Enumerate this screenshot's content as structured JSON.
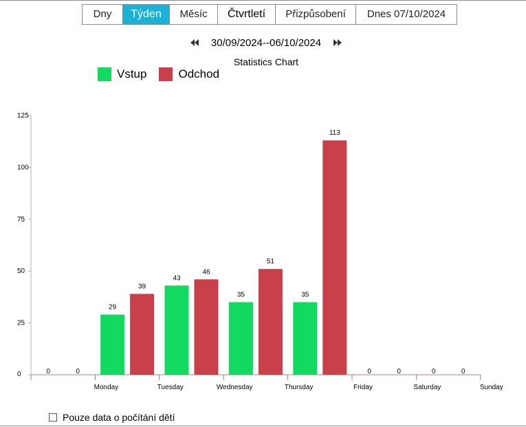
{
  "tabs": [
    {
      "label": "Dny",
      "active": false
    },
    {
      "label": "Týden",
      "active": true
    },
    {
      "label": "Měsíc",
      "active": false
    },
    {
      "label": "Čtvrtletí",
      "active": false
    },
    {
      "label": "Přizpůsobení",
      "active": false
    },
    {
      "label": "Dnes 07/10/2024",
      "active": false
    }
  ],
  "date_range": "30/09/2024--06/10/2024",
  "colors": {
    "accent": "#1ab2d6",
    "entry": "#12d95f",
    "exit": "#c8404a",
    "axis": "#c9a8a8"
  },
  "chart_data": {
    "type": "bar",
    "title": "Statistics Chart",
    "xlabel": "",
    "ylabel": "",
    "ylim": [
      0,
      125
    ],
    "yticks": [
      0,
      25,
      50,
      75,
      100,
      125
    ],
    "categories": [
      "Monday",
      "Tuesday",
      "Wednesday",
      "Thursday",
      "Friday",
      "Saturday",
      "Sunday"
    ],
    "series": [
      {
        "name": "Vstup",
        "color": "#12d95f",
        "values": [
          0,
          29,
          43,
          35,
          35,
          0,
          0
        ]
      },
      {
        "name": "Odchod",
        "color": "#c8404a",
        "values": [
          0,
          39,
          46,
          51,
          113,
          0,
          0
        ]
      }
    ],
    "legend_position": "top-left",
    "grid": false
  },
  "filter": {
    "label": "Pouze data o počítání dětí",
    "checked": false
  }
}
